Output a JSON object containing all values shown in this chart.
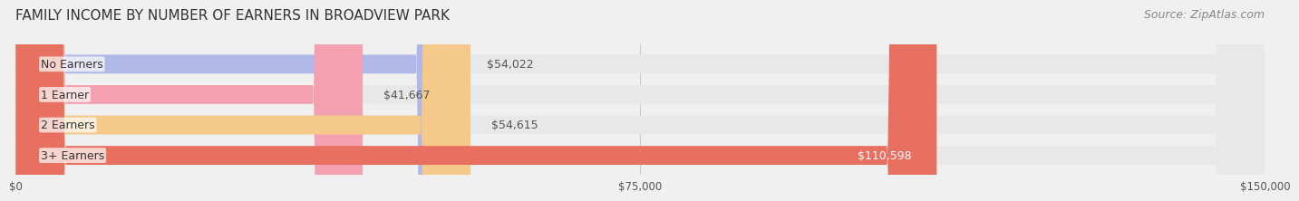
{
  "title": "FAMILY INCOME BY NUMBER OF EARNERS IN BROADVIEW PARK",
  "source": "Source: ZipAtlas.com",
  "categories": [
    "No Earners",
    "1 Earner",
    "2 Earners",
    "3+ Earners"
  ],
  "values": [
    54022,
    41667,
    54615,
    110598
  ],
  "bar_colors": [
    "#b0b8e8",
    "#f4a0b0",
    "#f5c98a",
    "#e87060"
  ],
  "bar_edge_colors": [
    "#9098c8",
    "#d47080",
    "#d5a060",
    "#c85040"
  ],
  "label_colors": [
    "#555555",
    "#555555",
    "#555555",
    "#ffffff"
  ],
  "value_labels": [
    "$54,022",
    "$41,667",
    "$54,615",
    "$110,598"
  ],
  "xlim": [
    0,
    150000
  ],
  "xticks": [
    0,
    75000,
    150000
  ],
  "xtick_labels": [
    "$0",
    "$75,000",
    "$150,000"
  ],
  "background_color": "#f0f0f0",
  "bar_background_color": "#e8e8e8",
  "title_fontsize": 11,
  "source_fontsize": 9,
  "label_fontsize": 9,
  "value_fontsize": 9
}
